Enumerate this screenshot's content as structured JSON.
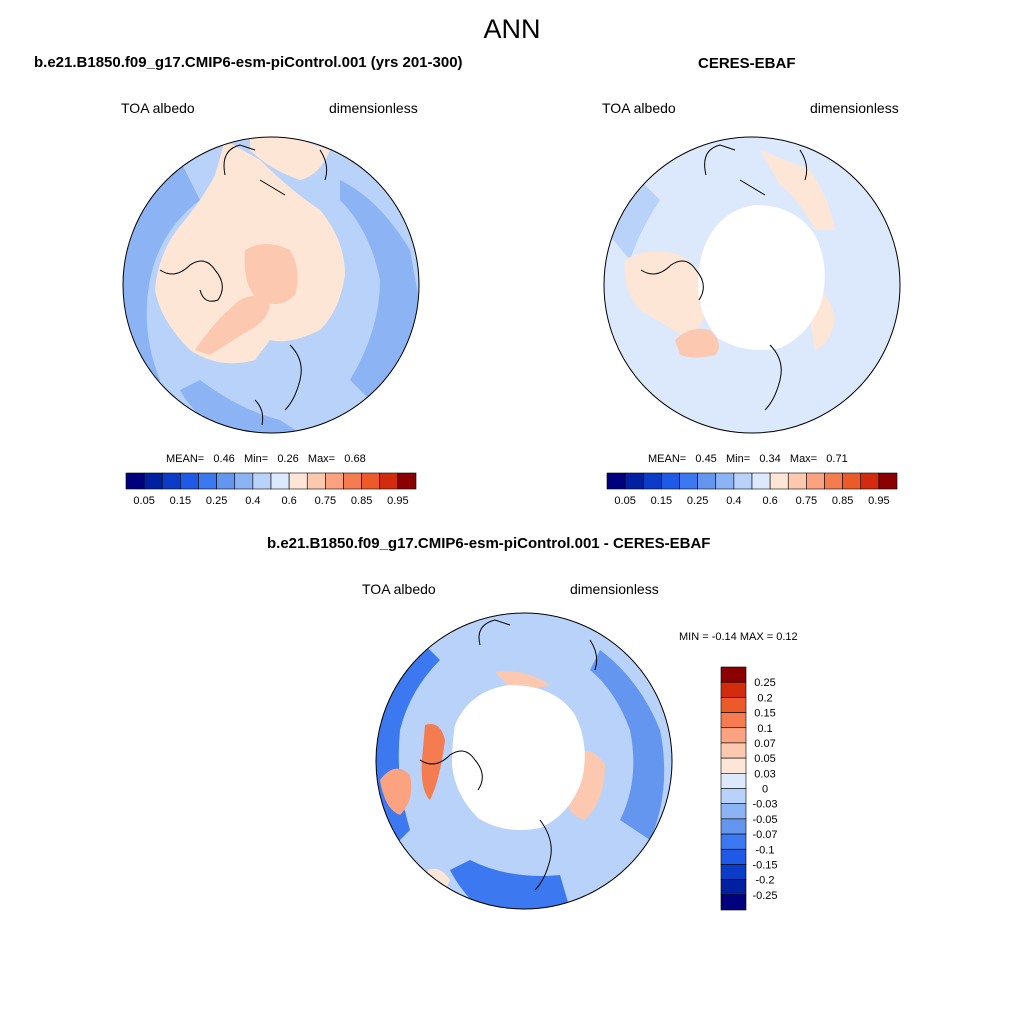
{
  "figure": {
    "title": "ANN",
    "panels": [
      {
        "id": "model",
        "title": "b.e21.B1850.f09_g17.CMIP6-esm-piControl.001 (yrs 201-300)",
        "left_label": "TOA albedo",
        "right_label": "dimensionless",
        "stats": {
          "mean_label": "MEAN=",
          "mean": "0.46",
          "min_label": "Min=",
          "min": "0.26",
          "max_label": "Max=",
          "max": "0.68"
        },
        "colorbar_ticks": [
          "0.05",
          "0.15",
          "0.25",
          "0.4",
          "0.6",
          "0.75",
          "0.85",
          "0.95"
        ]
      },
      {
        "id": "obs",
        "title": "CERES-EBAF",
        "left_label": "TOA albedo",
        "right_label": "dimensionless",
        "stats": {
          "mean_label": "MEAN=",
          "mean": "0.45",
          "min_label": "Min=",
          "min": "0.34",
          "max_label": "Max=",
          "max": "0.71"
        },
        "colorbar_ticks": [
          "0.05",
          "0.15",
          "0.25",
          "0.4",
          "0.6",
          "0.75",
          "0.85",
          "0.95"
        ]
      }
    ],
    "diff_panel": {
      "title": "b.e21.B1850.f09_g17.CMIP6-esm-piControl.001 - CERES-EBAF",
      "left_label": "TOA albedo",
      "right_label": "dimensionless",
      "minmax_label": "MIN =  -0.14 MAX =   0.12",
      "colorbar_ticks": [
        "0.25",
        "0.2",
        "0.15",
        "0.1",
        "0.07",
        "0.05",
        "0.03",
        "0",
        "-0.03",
        "-0.05",
        "-0.07",
        "-0.1",
        "-0.15",
        "-0.2",
        "-0.25"
      ]
    }
  },
  "chart_data": [
    {
      "type": "heatmap",
      "projection": "north-polar-stereographic",
      "title": "b.e21.B1850.f09_g17.CMIP6-esm-piControl.001 (yrs 201-300)",
      "variable": "TOA albedo",
      "units": "dimensionless",
      "mean": 0.46,
      "min": 0.26,
      "max": 0.68,
      "levels": [
        0.05,
        0.1,
        0.15,
        0.2,
        0.25,
        0.3,
        0.4,
        0.5,
        0.6,
        0.65,
        0.75,
        0.8,
        0.85,
        0.9,
        0.95
      ],
      "colors": [
        "#00007f",
        "#0020a0",
        "#0a3cc8",
        "#1e5ae6",
        "#3c78f0",
        "#6496f0",
        "#8cb4f5",
        "#b9d2fa",
        "#dce9fc",
        "#fde6d6",
        "#fcc9b0",
        "#fba380",
        "#f57c50",
        "#ec5a2a",
        "#d22b0e",
        "#8b0000"
      ]
    },
    {
      "type": "heatmap",
      "projection": "north-polar-stereographic",
      "title": "CERES-EBAF",
      "variable": "TOA albedo",
      "units": "dimensionless",
      "mean": 0.45,
      "min": 0.34,
      "max": 0.71,
      "levels": [
        0.05,
        0.1,
        0.15,
        0.2,
        0.25,
        0.3,
        0.4,
        0.5,
        0.6,
        0.65,
        0.75,
        0.8,
        0.85,
        0.9,
        0.95
      ],
      "colors": [
        "#00007f",
        "#0020a0",
        "#0a3cc8",
        "#1e5ae6",
        "#3c78f0",
        "#6496f0",
        "#8cb4f5",
        "#b9d2fa",
        "#dce9fc",
        "#fde6d6",
        "#fcc9b0",
        "#fba380",
        "#f57c50",
        "#ec5a2a",
        "#d22b0e",
        "#8b0000"
      ]
    },
    {
      "type": "heatmap",
      "projection": "north-polar-stereographic",
      "title": "b.e21.B1850.f09_g17.CMIP6-esm-piControl.001 - CERES-EBAF",
      "variable": "TOA albedo",
      "units": "dimensionless",
      "min": -0.14,
      "max": 0.12,
      "levels": [
        -0.25,
        -0.2,
        -0.15,
        -0.1,
        -0.07,
        -0.05,
        -0.03,
        0,
        0.03,
        0.05,
        0.07,
        0.1,
        0.15,
        0.2,
        0.25
      ],
      "colors": [
        "#00007f",
        "#0020a0",
        "#0a3cc8",
        "#1e5ae6",
        "#3c78f0",
        "#6496f0",
        "#8cb4f5",
        "#b9d2fa",
        "#dce9fc",
        "#fde6d6",
        "#fcc9b0",
        "#fba380",
        "#f57c50",
        "#ec5a2a",
        "#d22b0e",
        "#8b0000"
      ]
    }
  ]
}
